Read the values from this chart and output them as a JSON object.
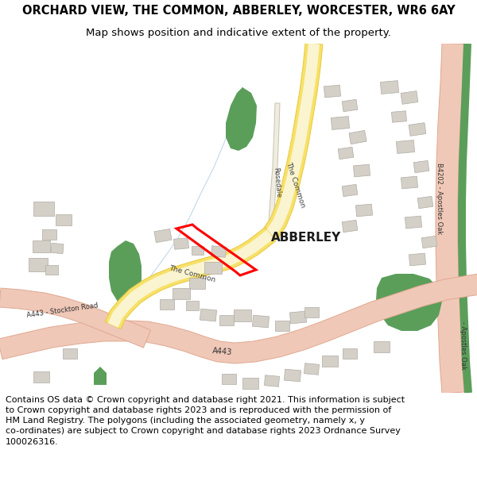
{
  "title": "ORCHARD VIEW, THE COMMON, ABBERLEY, WORCESTER, WR6 6AY",
  "subtitle": "Map shows position and indicative extent of the property.",
  "footer_line1": "Contains OS data © Crown copyright and database right 2021. This information is subject",
  "footer_line2": "to Crown copyright and database rights 2023 and is reproduced with the permission of",
  "footer_line3": "HM Land Registry. The polygons (including the associated geometry, namely x, y",
  "footer_line4": "co-ordinates) are subject to Crown copyright and database rights 2023 Ordnance Survey",
  "footer_line5": "100026316.",
  "map_bg": "#f2f0eb",
  "title_fontsize": 10.5,
  "subtitle_fontsize": 9.5,
  "footer_fontsize": 8.0,
  "abberley_label": "ABBERLEY",
  "the_common_label1": "The Common",
  "the_common_label2": "The Common",
  "rosedale_label": "Rosedale",
  "b4202_label": "B4202 - Apostles Oak",
  "apostles_oak_label": "- Apostles Oak",
  "a443_label": "A443",
  "a443_stockton_label": "A443 - Stockton Road",
  "road_yellow": "#f7e168",
  "road_yellow_edge": "#e8c840",
  "road_yellow_fill": "#faf5d0",
  "road_pink": "#f0c8b8",
  "road_pink_edge": "#e0a890",
  "green_color": "#5a9e5a",
  "building_color": "#d4d0c8",
  "building_edge": "#b0aca4",
  "blue_line_color": "#a8c8e0"
}
